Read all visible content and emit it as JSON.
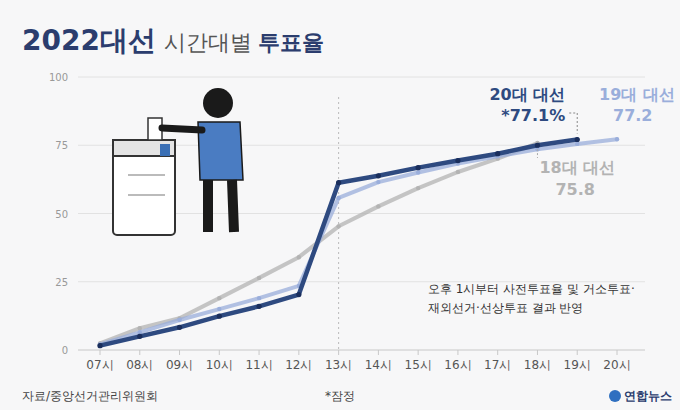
{
  "chart_data": {
    "type": "line",
    "title": [
      "2022대선",
      "시간대별",
      "투표율"
    ],
    "categories": [
      "07시",
      "08시",
      "09시",
      "10시",
      "11시",
      "12시",
      "13시",
      "14시",
      "15시",
      "16시",
      "17시",
      "18시",
      "19시",
      "20시"
    ],
    "ylim": [
      0,
      100
    ],
    "yticks": [
      0,
      25,
      50,
      75,
      100
    ],
    "grid": true,
    "series": [
      {
        "name": "18대 대선",
        "color": "#b3b3b3",
        "marker": "circle",
        "values": [
          2.4,
          8.0,
          11.6,
          19.0,
          26.4,
          34.0,
          45.3,
          52.6,
          59.3,
          65.2,
          70.1,
          75.8,
          null,
          null
        ],
        "value_labels": [
          null,
          null,
          null,
          null,
          null,
          null,
          null,
          null,
          null,
          null,
          null,
          "75.8",
          null,
          null
        ]
      },
      {
        "name": "19대 대선",
        "color": "#9aaedb",
        "marker": "circle",
        "values": [
          2.0,
          6.5,
          11.0,
          15.0,
          19.0,
          23.5,
          55.7,
          61.5,
          65.0,
          68.3,
          71.0,
          73.5,
          75.5,
          77.2
        ],
        "value_labels": [
          null,
          null,
          null,
          null,
          null,
          null,
          null,
          null,
          null,
          null,
          null,
          null,
          null,
          "77.2"
        ]
      },
      {
        "name": "20대 대선",
        "color": "#2e4a80",
        "marker": "circle",
        "values": [
          1.6,
          5.0,
          8.3,
          12.4,
          16.0,
          20.3,
          61.3,
          63.8,
          66.8,
          69.4,
          71.9,
          75.0,
          77.1,
          null
        ],
        "value_labels": [
          null,
          null,
          null,
          null,
          null,
          null,
          null,
          null,
          null,
          null,
          null,
          null,
          "*77.1%",
          null
        ]
      }
    ],
    "annotations": [
      {
        "text": [
          "오후 1시부터 사전투표율 및 거소투표·",
          "재외선거·선상투표 결과 반영"
        ],
        "x": "13시"
      }
    ],
    "source": "자료/중앙선거관리위원회",
    "note": "*잠정",
    "credit": "연합뉴스"
  }
}
